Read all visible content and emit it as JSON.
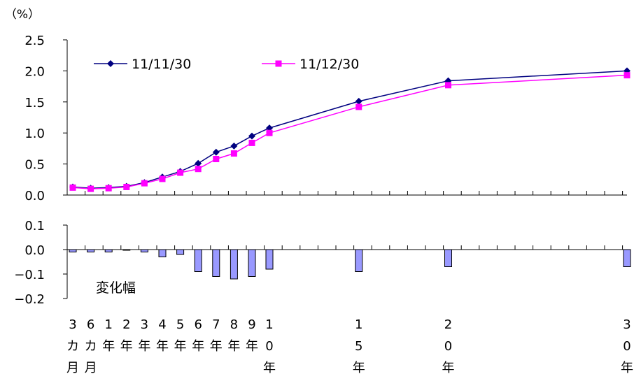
{
  "chart_data": [
    {
      "type": "line",
      "unit_label": "（%）",
      "ylim": [
        0,
        2.5
      ],
      "yticks": [
        "0.0",
        "0.5",
        "1.0",
        "1.5",
        "2.0",
        "2.5"
      ],
      "grid": false,
      "legend_position": "top-left",
      "x_tick_labels": [
        [
          "3",
          "カ",
          "月"
        ],
        [
          "6",
          "カ",
          "月"
        ],
        [
          "1",
          "年"
        ],
        [
          "2",
          "年"
        ],
        [
          "3",
          "年"
        ],
        [
          "4",
          "年"
        ],
        [
          "5",
          "年"
        ],
        [
          "6",
          "年"
        ],
        [
          "7",
          "年"
        ],
        [
          "8",
          "年"
        ],
        [
          "9",
          "年"
        ],
        [
          "1",
          "0",
          "年"
        ],
        [
          "1",
          "5",
          "年"
        ],
        [
          "2",
          "0",
          "年"
        ],
        [
          "3",
          "0",
          "年"
        ]
      ],
      "x": [
        0.25,
        0.5,
        1,
        2,
        3,
        4,
        5,
        6,
        7,
        8,
        9,
        10,
        15,
        20,
        30
      ],
      "series": [
        {
          "name": "11/11/30",
          "color": "#000080",
          "marker": "diamond",
          "values": [
            0.13,
            0.11,
            0.12,
            0.14,
            0.2,
            0.29,
            0.38,
            0.51,
            0.69,
            0.79,
            0.95,
            1.08,
            1.51,
            1.84,
            2.0
          ]
        },
        {
          "name": "11/12/30",
          "color": "#ff00ff",
          "marker": "square",
          "values": [
            0.12,
            0.1,
            0.11,
            0.13,
            0.19,
            0.26,
            0.36,
            0.42,
            0.58,
            0.67,
            0.84,
            1.0,
            1.42,
            1.77,
            1.93
          ]
        }
      ]
    },
    {
      "type": "bar",
      "annotation": "変化幅",
      "ylim": [
        -0.2,
        0.1
      ],
      "yticks": [
        "-0.2",
        "-0.1",
        "0.0",
        "0.1"
      ],
      "bar_color": "#9999ff",
      "x": [
        0.25,
        0.5,
        1,
        2,
        3,
        4,
        5,
        6,
        7,
        8,
        9,
        10,
        15,
        20,
        30
      ],
      "values": [
        -0.01,
        -0.01,
        -0.01,
        0.0,
        -0.01,
        -0.03,
        -0.02,
        -0.09,
        -0.11,
        -0.12,
        -0.11,
        -0.08,
        -0.09,
        -0.07,
        -0.07
      ]
    }
  ]
}
